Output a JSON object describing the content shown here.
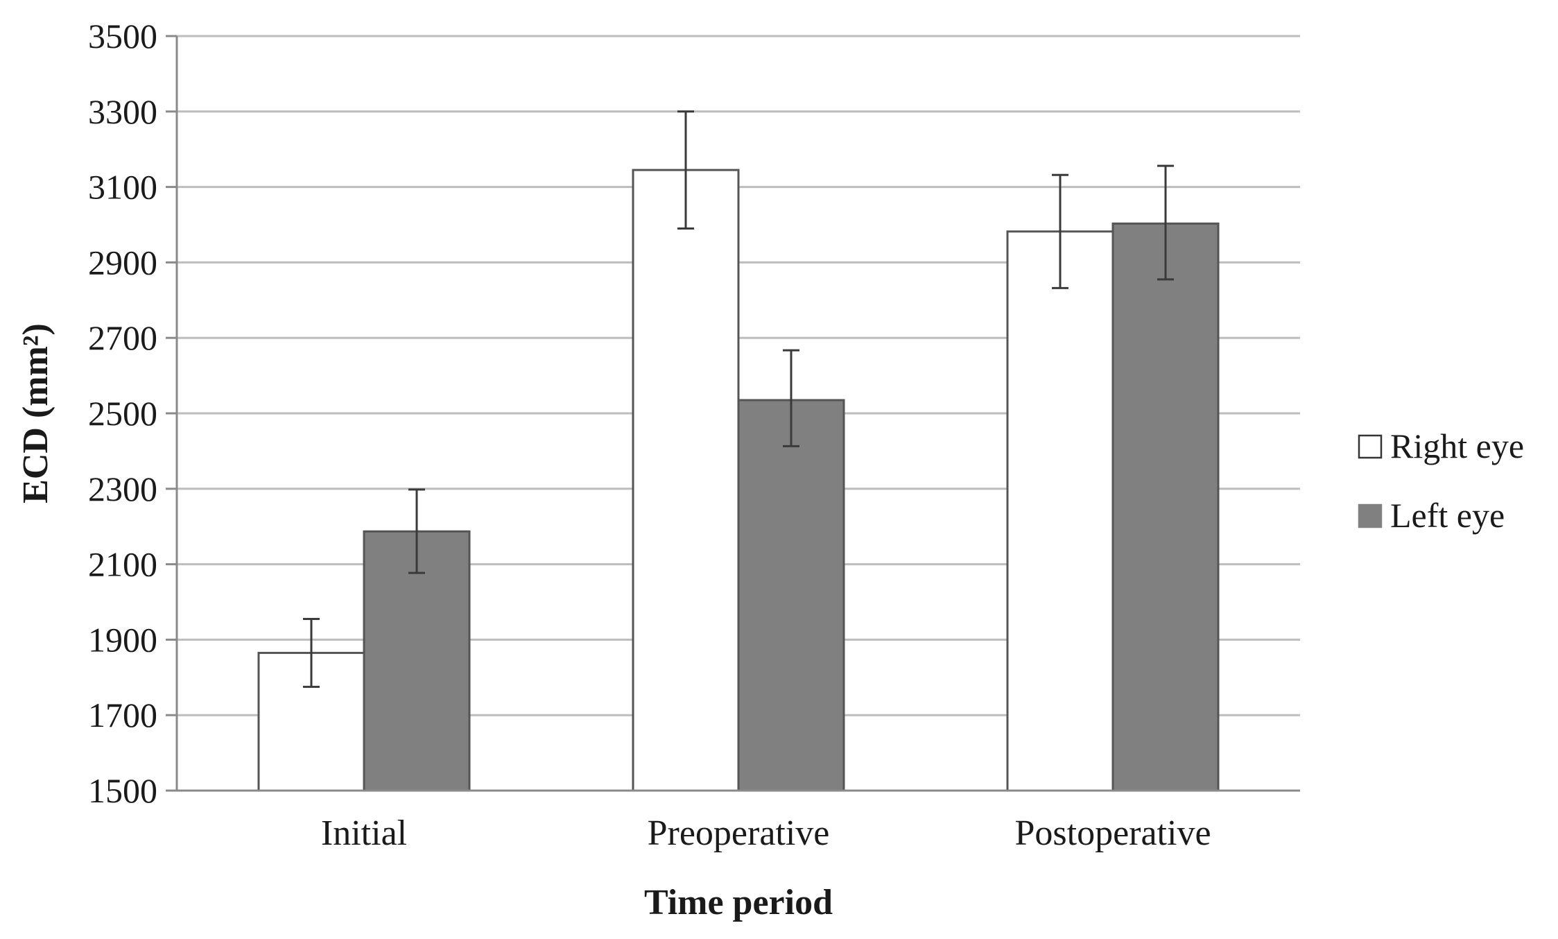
{
  "chart_data": {
    "type": "bar",
    "title": "",
    "xlabel": "Time period",
    "ylabel": "ECD (mm²)",
    "categories": [
      "Initial",
      "Preoperative",
      "Postoperative"
    ],
    "ylim": [
      1500,
      3500
    ],
    "yticks": [
      1500,
      1700,
      1900,
      2100,
      2300,
      2500,
      2700,
      2900,
      3100,
      3300,
      3500
    ],
    "grid": true,
    "legend_position": "right",
    "series": [
      {
        "name": "Right eye",
        "color": "#ffffff",
        "edge_color": "#555555",
        "values": [
          1865,
          3145,
          2982
        ],
        "error_low": [
          1775,
          2990,
          2832
        ],
        "error_high": [
          1955,
          3300,
          3132
        ]
      },
      {
        "name": "Left eye",
        "color": "#808080",
        "edge_color": "#555555",
        "values": [
          2187,
          2535,
          3003
        ],
        "error_low": [
          2077,
          2413,
          2855
        ],
        "error_high": [
          2298,
          2667,
          3156
        ]
      }
    ]
  }
}
